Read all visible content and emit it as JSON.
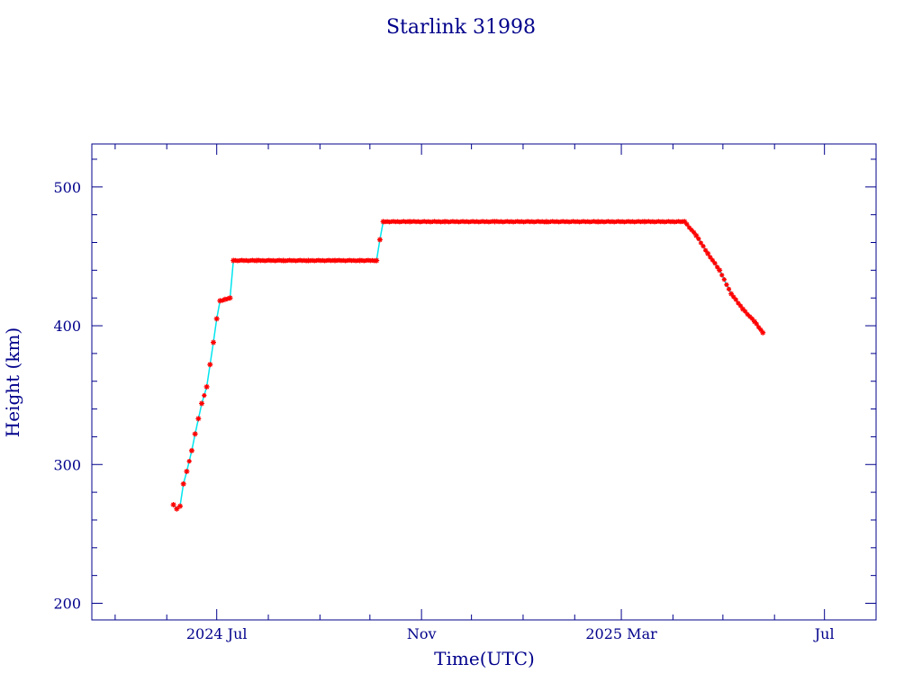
{
  "chart_data": {
    "type": "scatter",
    "title": "Starlink 31998",
    "xlabel": "Time(UTC)",
    "ylabel": "Height (km)",
    "grid": false,
    "legend": "none",
    "xlim": [
      "2024-04-17",
      "2025-08-01"
    ],
    "ylim": [
      188,
      531
    ],
    "x_ticks": [
      {
        "date": "2024-07-01",
        "label": "2024 Jul"
      },
      {
        "date": "2024-11-01",
        "label": "Nov"
      },
      {
        "date": "2025-03-01",
        "label": "2025 Mar"
      },
      {
        "date": "2025-07-01",
        "label": "Jul"
      }
    ],
    "x_minor_ticks": [
      "2024-05-01",
      "2024-06-01",
      "2024-08-01",
      "2024-09-01",
      "2024-10-01",
      "2024-12-01",
      "2025-01-01",
      "2025-02-01",
      "2025-04-01",
      "2025-05-01",
      "2025-06-01",
      "2025-08-01"
    ],
    "y_ticks": [
      200,
      300,
      400,
      500
    ],
    "y_minor_step": 20,
    "colors": {
      "marker": "#ff0000",
      "line": "#00e5ee",
      "axis": "#00008b"
    },
    "series": [
      {
        "points": [
          [
            "2024-06-05",
            271
          ],
          [
            "2024-06-07",
            268
          ],
          [
            "2024-06-09",
            270
          ],
          [
            "2024-06-11",
            286
          ],
          [
            "2024-06-13",
            295
          ],
          [
            "2024-06-16",
            310
          ],
          [
            "2024-06-18",
            322
          ],
          [
            "2024-06-20",
            333
          ],
          [
            "2024-06-22",
            344
          ],
          [
            "2024-06-25",
            356
          ],
          [
            "2024-06-27",
            372
          ],
          [
            "2024-06-29",
            388
          ],
          [
            "2024-07-01",
            405
          ],
          [
            "2024-07-03",
            418
          ],
          [
            "2024-07-06",
            419
          ],
          [
            "2024-07-09",
            420
          ],
          [
            "2024-07-11",
            447
          ],
          [
            "2024-07-25",
            447
          ],
          [
            "2024-08-10",
            447
          ],
          [
            "2024-08-25",
            447
          ],
          [
            "2024-09-10",
            447
          ],
          [
            "2024-09-25",
            447
          ],
          [
            "2024-10-05",
            447
          ],
          [
            "2024-10-07",
            462
          ],
          [
            "2024-10-09",
            475
          ],
          [
            "2024-10-25",
            475
          ],
          [
            "2024-11-15",
            475
          ],
          [
            "2024-12-15",
            475
          ],
          [
            "2025-01-15",
            475
          ],
          [
            "2025-02-15",
            475
          ],
          [
            "2025-03-15",
            475
          ],
          [
            "2025-04-08",
            475
          ],
          [
            "2025-04-15",
            465
          ],
          [
            "2025-04-22",
            452
          ],
          [
            "2025-04-29",
            440
          ],
          [
            "2025-05-06",
            423
          ],
          [
            "2025-05-13",
            412
          ],
          [
            "2025-05-20",
            403
          ],
          [
            "2025-05-25",
            395
          ]
        ]
      }
    ]
  }
}
